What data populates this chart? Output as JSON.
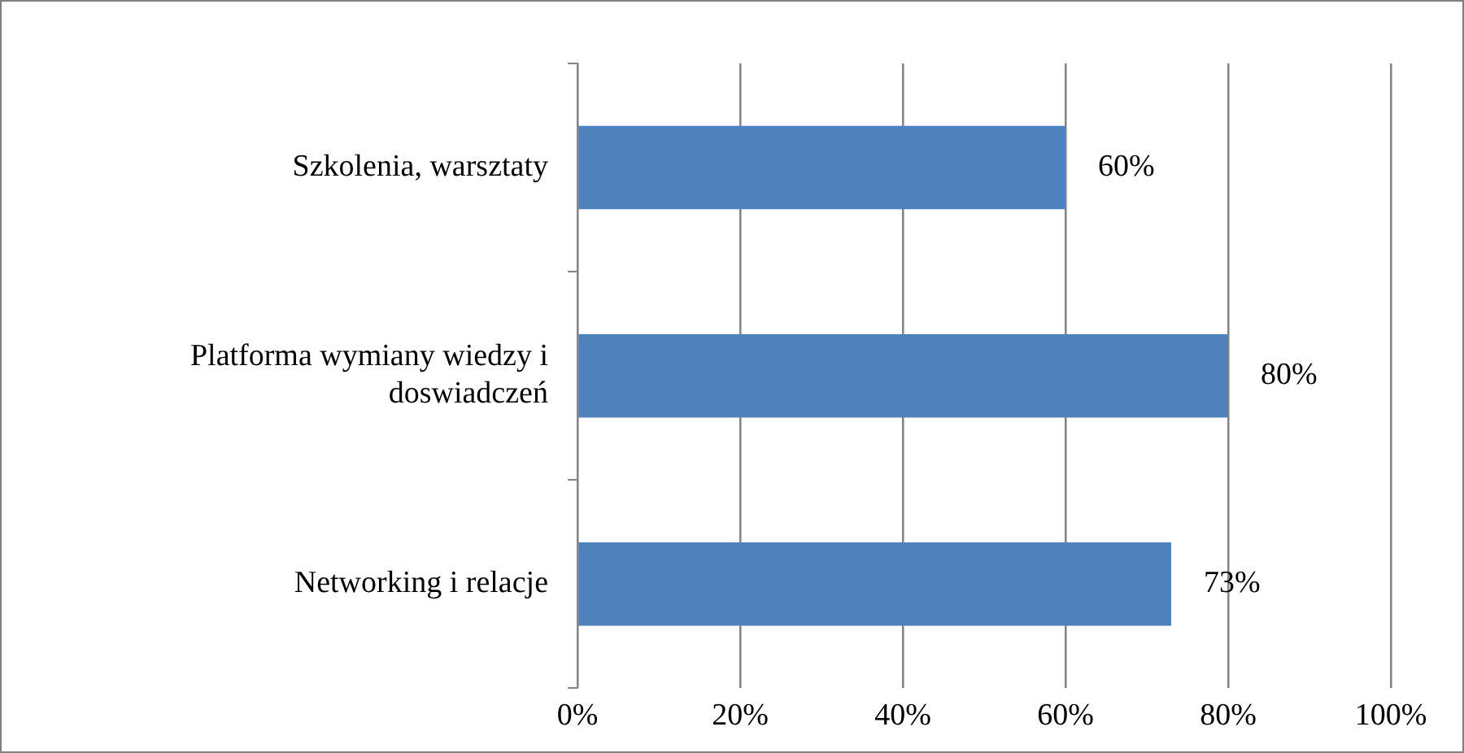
{
  "chart_data": {
    "type": "bar",
    "orientation": "horizontal",
    "categories": [
      "Szkolenia, warsztaty",
      "Platforma wymiany wiedzy i doswiadczeń",
      "Networking i relacje"
    ],
    "values": [
      60,
      80,
      73
    ],
    "color": "#4f81bd",
    "value_labels": [
      "60%",
      "80%",
      "73%"
    ],
    "xlim": [
      0,
      100
    ],
    "xticks": [
      {
        "value": 0,
        "label": "0%"
      },
      {
        "value": 20,
        "label": "20%"
      },
      {
        "value": 40,
        "label": "40%"
      },
      {
        "value": 60,
        "label": "60%"
      },
      {
        "value": 80,
        "label": "80%"
      },
      {
        "value": 100,
        "label": "100%"
      }
    ],
    "grid": "x",
    "legend": false
  }
}
